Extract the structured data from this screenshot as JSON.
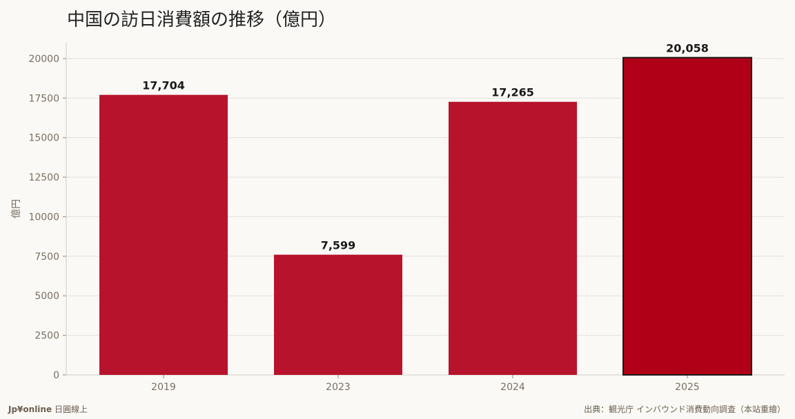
{
  "chart_data": {
    "type": "bar",
    "title": "中国の訪日消費額の推移（億円）",
    "xlabel": "",
    "ylabel": "億円",
    "categories": [
      "2019",
      "2023",
      "2024",
      "2025"
    ],
    "values": [
      17704,
      7599,
      17265,
      20058
    ],
    "value_labels": [
      "17,704",
      "7,599",
      "17,265",
      "20,058"
    ],
    "ylim": [
      0,
      21000
    ],
    "yticks": [
      0,
      2500,
      5000,
      7500,
      10000,
      12500,
      15000,
      17500,
      20000
    ],
    "grid": true,
    "legend": "none",
    "colors": {
      "bar": "#b8132c",
      "highlight_bar": "#b00018",
      "highlight_edge": "#1a1a1a",
      "background": "#faf9f6",
      "grid": "#e3e0da"
    },
    "highlight_index": 3
  },
  "footer": {
    "brand": "Jp¥online",
    "brand_suffix": "日圓線上",
    "source": "出典：観光庁 インバウンド消費動向調査（本站重繪）"
  }
}
